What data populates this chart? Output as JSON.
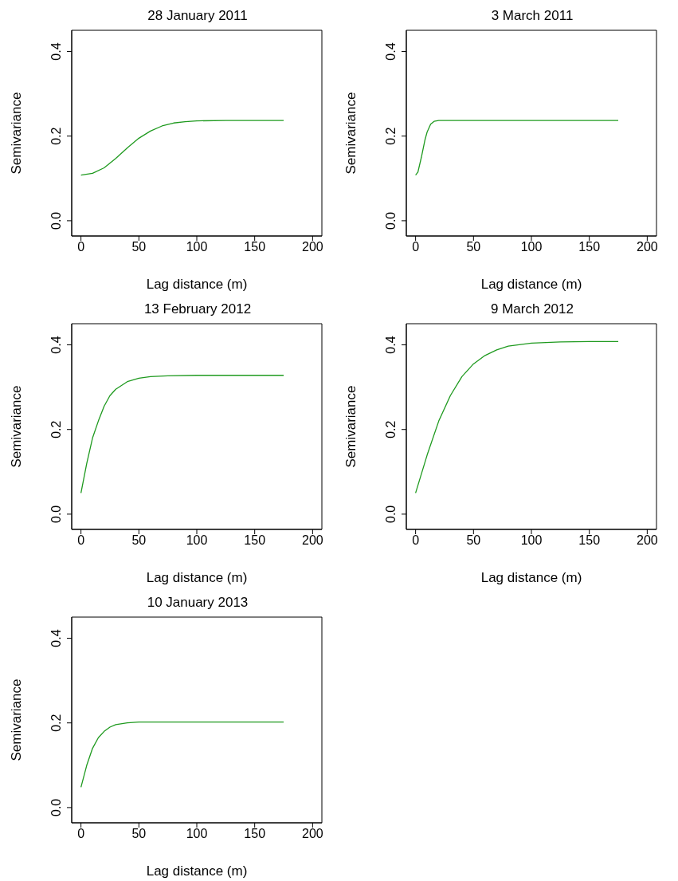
{
  "chart_data": [
    {
      "type": "line",
      "title": "28 January 2011",
      "xlabel": "Lag distance (m)",
      "ylabel": "Semivariance",
      "xlim": [
        -8,
        208
      ],
      "ylim": [
        -0.036,
        0.45
      ],
      "xticks": [
        0,
        50,
        100,
        150,
        200
      ],
      "yticks": [
        {
          "value": 0,
          "label": "0.0"
        },
        {
          "value": 0.2,
          "label": "0.2"
        },
        {
          "value": 0.4,
          "label": "0.4"
        }
      ],
      "series": [
        {
          "color": "#1f9a1f",
          "x": [
            0,
            10,
            20,
            30,
            40,
            50,
            60,
            70,
            80,
            90,
            100,
            125,
            150,
            175
          ],
          "values": [
            0.108,
            0.112,
            0.125,
            0.147,
            0.172,
            0.195,
            0.212,
            0.224,
            0.231,
            0.234,
            0.236,
            0.237,
            0.237,
            0.237
          ]
        }
      ]
    },
    {
      "type": "line",
      "title": "3 March 2011",
      "xlabel": "Lag distance (m)",
      "ylabel": "Semivariance",
      "xlim": [
        -8,
        208
      ],
      "ylim": [
        -0.036,
        0.45
      ],
      "xticks": [
        0,
        50,
        100,
        150,
        200
      ],
      "yticks": [
        {
          "value": 0,
          "label": "0.0"
        },
        {
          "value": 0.2,
          "label": "0.2"
        },
        {
          "value": 0.4,
          "label": "0.4"
        }
      ],
      "series": [
        {
          "color": "#1f9a1f",
          "x": [
            0,
            2,
            5,
            8,
            10,
            13,
            16,
            20,
            30,
            50,
            100,
            175
          ],
          "values": [
            0.108,
            0.115,
            0.15,
            0.19,
            0.21,
            0.228,
            0.235,
            0.237,
            0.237,
            0.237,
            0.237,
            0.237
          ]
        }
      ]
    },
    {
      "type": "line",
      "title": "13 February 2012",
      "xlabel": "Lag distance (m)",
      "ylabel": "Semivariance",
      "xlim": [
        -8,
        208
      ],
      "ylim": [
        -0.036,
        0.45
      ],
      "xticks": [
        0,
        50,
        100,
        150,
        200
      ],
      "yticks": [
        {
          "value": 0,
          "label": "0.0"
        },
        {
          "value": 0.2,
          "label": "0.2"
        },
        {
          "value": 0.4,
          "label": "0.4"
        }
      ],
      "series": [
        {
          "color": "#1f9a1f",
          "x": [
            0,
            5,
            10,
            15,
            20,
            25,
            30,
            40,
            50,
            60,
            75,
            100,
            175
          ],
          "values": [
            0.05,
            0.12,
            0.18,
            0.22,
            0.255,
            0.28,
            0.295,
            0.313,
            0.321,
            0.325,
            0.327,
            0.328,
            0.328
          ]
        }
      ]
    },
    {
      "type": "line",
      "title": "9 March 2012",
      "xlabel": "Lag distance (m)",
      "ylabel": "Semivariance",
      "xlim": [
        -8,
        208
      ],
      "ylim": [
        -0.036,
        0.45
      ],
      "xticks": [
        0,
        50,
        100,
        150,
        200
      ],
      "yticks": [
        {
          "value": 0,
          "label": "0.0"
        },
        {
          "value": 0.2,
          "label": "0.2"
        },
        {
          "value": 0.4,
          "label": "0.4"
        }
      ],
      "series": [
        {
          "color": "#1f9a1f",
          "x": [
            0,
            10,
            20,
            30,
            40,
            50,
            60,
            70,
            80,
            100,
            125,
            150,
            175
          ],
          "values": [
            0.05,
            0.14,
            0.22,
            0.28,
            0.325,
            0.355,
            0.375,
            0.388,
            0.397,
            0.404,
            0.407,
            0.408,
            0.408
          ]
        }
      ]
    },
    {
      "type": "line",
      "title": "10 January 2013",
      "xlabel": "Lag distance (m)",
      "ylabel": "Semivariance",
      "xlim": [
        -8,
        208
      ],
      "ylim": [
        -0.036,
        0.45
      ],
      "xticks": [
        0,
        50,
        100,
        150,
        200
      ],
      "yticks": [
        {
          "value": 0,
          "label": "0.0"
        },
        {
          "value": 0.2,
          "label": "0.2"
        },
        {
          "value": 0.4,
          "label": "0.4"
        }
      ],
      "series": [
        {
          "color": "#1f9a1f",
          "x": [
            0,
            5,
            10,
            15,
            20,
            25,
            30,
            40,
            50,
            100,
            175
          ],
          "values": [
            0.048,
            0.1,
            0.14,
            0.165,
            0.18,
            0.19,
            0.196,
            0.2,
            0.202,
            0.202,
            0.202
          ]
        }
      ]
    }
  ]
}
